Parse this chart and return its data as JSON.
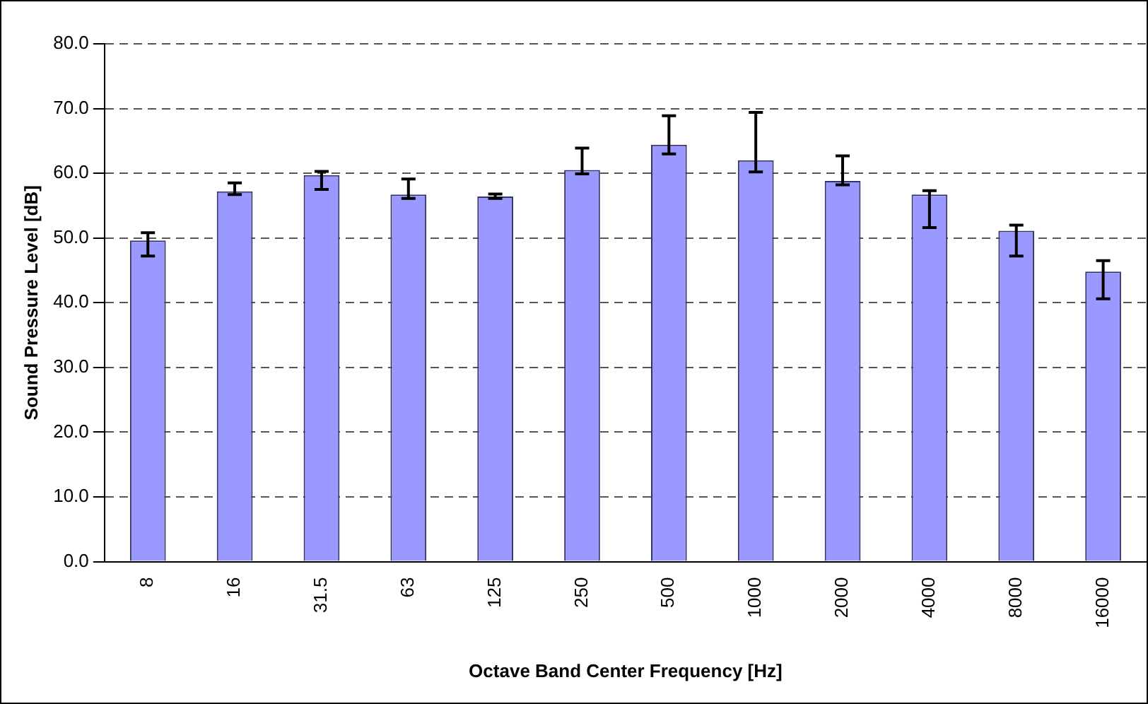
{
  "chart_data": {
    "type": "bar",
    "xlabel": "Octave Band Center Frequency [Hz]",
    "ylabel": "Sound Pressure Level [dB]",
    "categories": [
      "8",
      "16",
      "31.5",
      "63",
      "125",
      "250",
      "500",
      "1000",
      "2000",
      "4000",
      "8000",
      "16000"
    ],
    "values": [
      49.6,
      57.2,
      59.7,
      56.7,
      56.4,
      60.5,
      64.4,
      62.0,
      58.8,
      56.7,
      51.1,
      44.8
    ],
    "errors": [
      [
        47.2,
        50.8
      ],
      [
        56.7,
        58.5
      ],
      [
        57.5,
        60.3
      ],
      [
        56.1,
        59.1
      ],
      [
        56.1,
        56.8
      ],
      [
        59.9,
        63.9
      ],
      [
        63.0,
        68.9
      ],
      [
        60.2,
        69.4
      ],
      [
        58.2,
        62.7
      ],
      [
        51.6,
        57.3
      ],
      [
        47.2,
        52.0
      ],
      [
        40.6,
        46.5
      ]
    ],
    "color": "#9999ff",
    "ylim": [
      0,
      80
    ],
    "yticks": [
      {
        "value": 0,
        "label": "0.0"
      },
      {
        "value": 10,
        "label": "10.0"
      },
      {
        "value": 20,
        "label": "20.0"
      },
      {
        "value": 30,
        "label": "30.0"
      },
      {
        "value": 40,
        "label": "40.0"
      },
      {
        "value": 50,
        "label": "50.0"
      },
      {
        "value": 60,
        "label": "60.0"
      },
      {
        "value": 70,
        "label": "70.0"
      },
      {
        "value": 80,
        "label": "80.0"
      }
    ],
    "grid": "y",
    "legend": false
  }
}
